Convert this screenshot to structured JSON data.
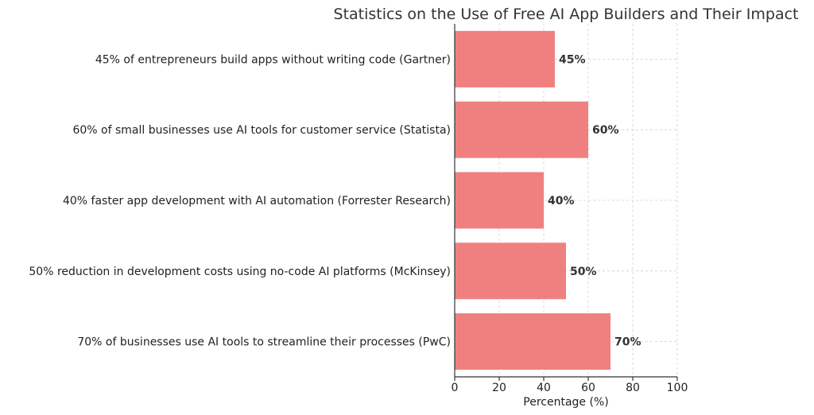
{
  "chart_data": {
    "type": "bar",
    "orientation": "horizontal",
    "title": "Statistics on the Use of Free AI App Builders and Their Impact",
    "xlabel": "Percentage (%)",
    "ylabel": "",
    "xlim": [
      0,
      100
    ],
    "xticks": [
      0,
      20,
      40,
      60,
      80,
      100
    ],
    "grid": true,
    "bar_color": "#f08080",
    "categories": [
      "45% of entrepreneurs build apps without writing code (Gartner)",
      "60% of small businesses use AI tools for customer service (Statista)",
      "40% faster app development with AI automation (Forrester Research)",
      "50% reduction in development costs using no-code AI platforms (McKinsey)",
      "70% of businesses use AI tools to streamline their processes (PwC)"
    ],
    "values": [
      45,
      60,
      40,
      50,
      70
    ],
    "data_labels": [
      "45%",
      "60%",
      "40%",
      "50%",
      "70%"
    ]
  }
}
